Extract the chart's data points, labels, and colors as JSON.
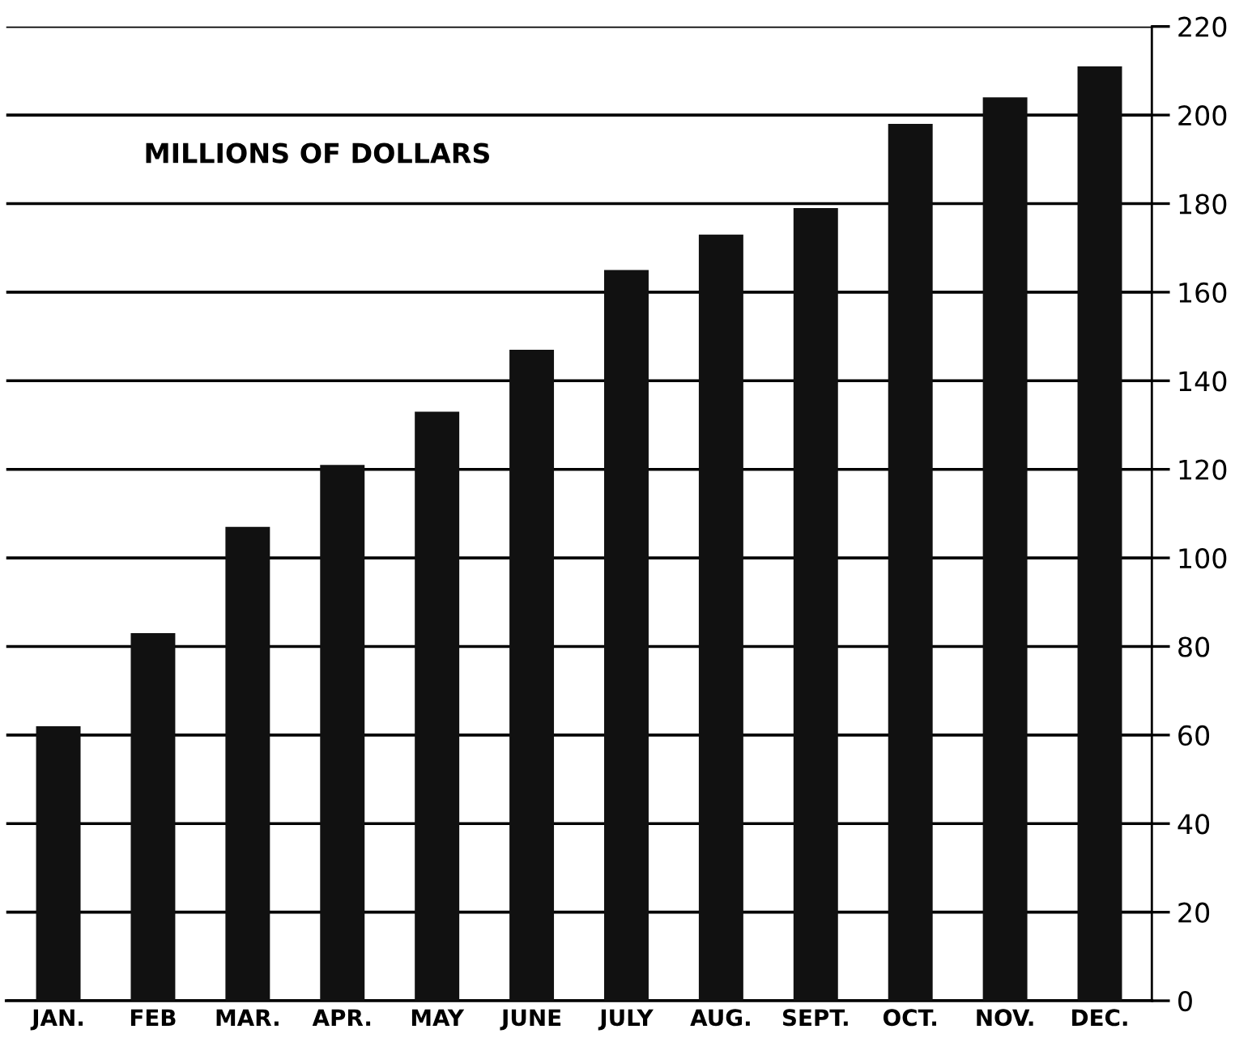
{
  "chart_data": {
    "type": "bar",
    "title": "MILLIONS OF DOLLARS",
    "categories": [
      "JAN.",
      "FEB",
      "MAR.",
      "APR.",
      "MAY",
      "JUNE",
      "JULY",
      "AUG.",
      "SEPT.",
      "OCT.",
      "NOV.",
      "DEC."
    ],
    "values": [
      62,
      83,
      107,
      121,
      133,
      147,
      165,
      173,
      179,
      198,
      204,
      211
    ],
    "color": "#111111",
    "ylim": [
      0,
      220
    ],
    "yticks": [
      0,
      20,
      40,
      60,
      80,
      100,
      120,
      140,
      160,
      180,
      200,
      220
    ],
    "grid": "y"
  }
}
